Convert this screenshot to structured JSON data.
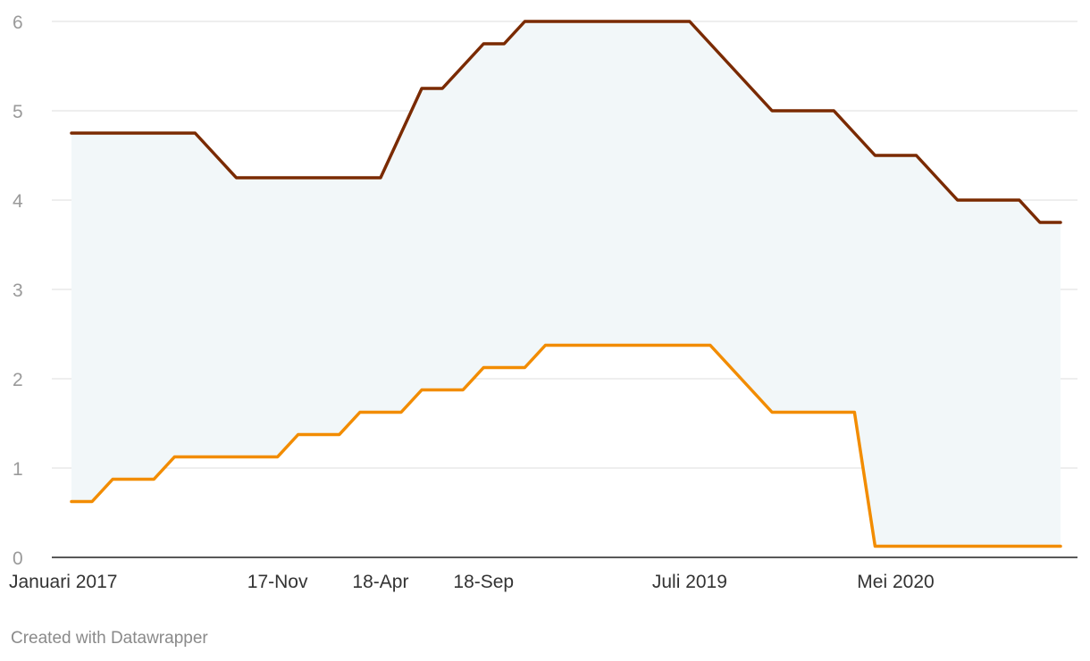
{
  "chart_data": {
    "type": "line",
    "title": "",
    "xlabel": "",
    "ylabel": "",
    "ylim": [
      0,
      6
    ],
    "yticks": [
      0,
      1,
      2,
      3,
      4,
      5,
      6
    ],
    "grid": true,
    "x_axis_labels": [
      {
        "label": "Januari 2017",
        "x": "2017-01"
      },
      {
        "label": "17-Nov",
        "x": "2017-11"
      },
      {
        "label": "18-Apr",
        "x": "2018-04"
      },
      {
        "label": "18-Sep",
        "x": "2018-09"
      },
      {
        "label": "Juli 2019",
        "x": "2019-07"
      },
      {
        "label": "Mei 2020",
        "x": "2020-05"
      }
    ],
    "x": [
      "2017-01",
      "2017-02",
      "2017-03",
      "2017-04",
      "2017-05",
      "2017-06",
      "2017-07",
      "2017-08",
      "2017-09",
      "2017-10",
      "2017-11",
      "2017-12",
      "2018-01",
      "2018-02",
      "2018-03",
      "2018-04",
      "2018-05",
      "2018-06",
      "2018-07",
      "2018-08",
      "2018-09",
      "2018-10",
      "2018-11",
      "2018-12",
      "2019-01",
      "2019-02",
      "2019-03",
      "2019-04",
      "2019-05",
      "2019-06",
      "2019-07",
      "2019-08",
      "2019-09",
      "2019-10",
      "2019-11",
      "2019-12",
      "2020-01",
      "2020-02",
      "2020-03",
      "2020-04",
      "2020-05",
      "2020-06",
      "2020-07",
      "2020-08",
      "2020-09",
      "2020-10",
      "2020-11",
      "2020-12",
      "2021-01"
    ],
    "series": [
      {
        "color": "#7a2a00",
        "values": [
          4.75,
          4.75,
          4.75,
          4.75,
          4.75,
          4.75,
          4.75,
          4.5,
          4.25,
          4.25,
          4.25,
          4.25,
          4.25,
          4.25,
          4.25,
          4.25,
          4.75,
          5.25,
          5.25,
          5.5,
          5.75,
          5.75,
          6,
          6,
          6,
          6,
          6,
          6,
          6,
          6,
          6,
          5.75,
          5.5,
          5.25,
          5,
          5,
          5,
          5,
          4.75,
          4.5,
          4.5,
          4.5,
          4.25,
          4,
          4,
          4,
          4,
          3.75,
          3.75
        ]
      },
      {
        "color": "#f28c00",
        "values": [
          0.625,
          0.625,
          0.875,
          0.875,
          0.875,
          1.125,
          1.125,
          1.125,
          1.125,
          1.125,
          1.125,
          1.375,
          1.375,
          1.375,
          1.625,
          1.625,
          1.625,
          1.875,
          1.875,
          1.875,
          2.125,
          2.125,
          2.125,
          2.375,
          2.375,
          2.375,
          2.375,
          2.375,
          2.375,
          2.375,
          2.375,
          2.375,
          2.125,
          1.875,
          1.625,
          1.625,
          1.625,
          1.625,
          1.625,
          0.125,
          0.125,
          0.125,
          0.125,
          0.125,
          0.125,
          0.125,
          0.125,
          0.125,
          0.125
        ]
      }
    ],
    "band_fill": "#f2f7f9",
    "gridline_color": "#dddddd",
    "axis_color": "#222222"
  },
  "credit": "Created with Datawrapper"
}
